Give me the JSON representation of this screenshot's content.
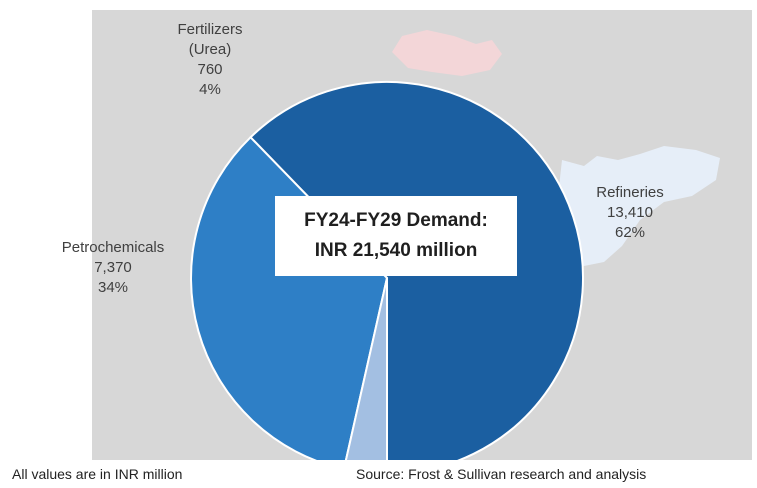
{
  "chart_data": {
    "type": "pie",
    "center_label": {
      "line1": "FY24-FY29 Demand:",
      "line2": "INR 21,540 million"
    },
    "slices": [
      {
        "name": "Refineries",
        "value": 13410,
        "value_label": "13,410",
        "percent_label": "62%",
        "color": "#1b5fa1"
      },
      {
        "name": "Petrochemicals",
        "value": 7370,
        "value_label": "7,370",
        "percent_label": "34%",
        "color": "#2e7fc6"
      },
      {
        "name_lines": [
          "Fertilizers",
          "(Urea)"
        ],
        "value": 760,
        "value_label": "760",
        "percent_label": "4%",
        "color": "#a3bfe2"
      }
    ],
    "colors": {
      "panel_background": "#d7d7d7",
      "map_fill": "#e6eef8",
      "map_north_fill": "#f3d6d8",
      "slice_border": "#ffffff"
    }
  },
  "footer": {
    "note": "All values are in INR million",
    "source": "Source: Frost & Sullivan research and analysis"
  }
}
